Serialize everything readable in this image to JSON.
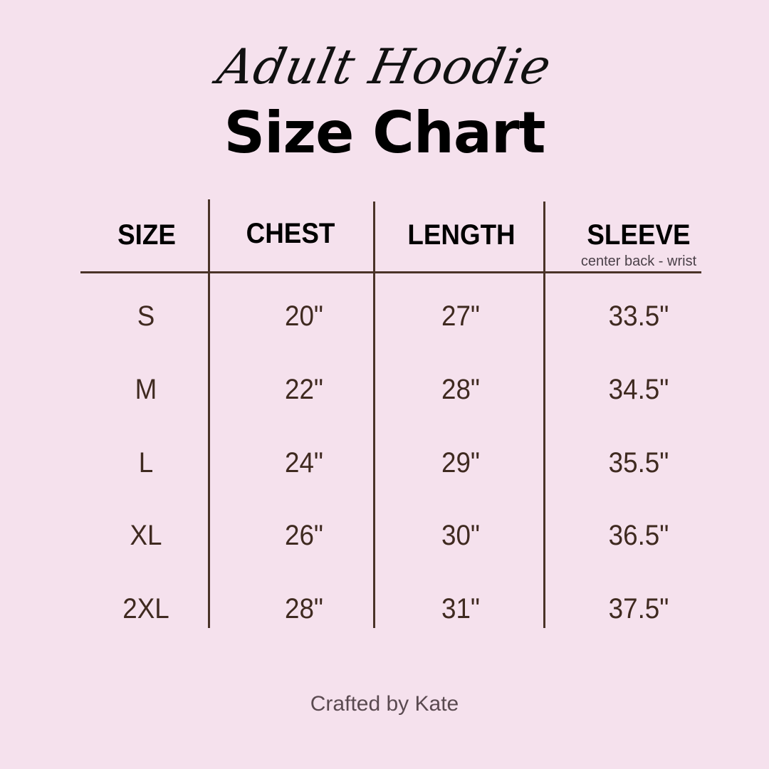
{
  "header": {
    "script_title": "Adult Hoodie",
    "title": "Size Chart"
  },
  "table": {
    "columns": [
      {
        "label": "SIZE",
        "sublabel": ""
      },
      {
        "label": "CHEST",
        "sublabel": ""
      },
      {
        "label": "LENGTH",
        "sublabel": ""
      },
      {
        "label": "SLEEVE",
        "sublabel": "center back - wrist"
      }
    ],
    "rows": [
      [
        "S",
        "20\"",
        "27\"",
        "33.5\""
      ],
      [
        "M",
        "22\"",
        "28\"",
        "34.5\""
      ],
      [
        "L",
        "24\"",
        "29\"",
        "35.5\""
      ],
      [
        "XL",
        "26\"",
        "30\"",
        "36.5\""
      ],
      [
        "2XL",
        "28\"",
        "31\"",
        "37.5\""
      ]
    ]
  },
  "footer": {
    "credit": "Crafted by Kate"
  },
  "colors": {
    "background": "#f5e1ed",
    "lines": "#4a3328",
    "values": "#3f2a20"
  }
}
